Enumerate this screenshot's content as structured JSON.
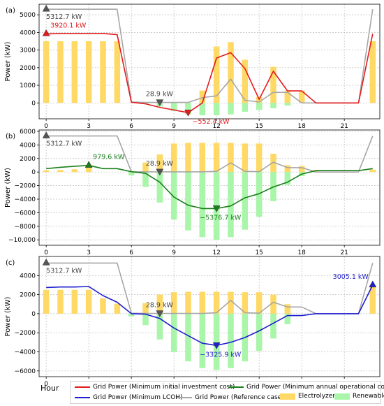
{
  "figure": {
    "x_axis_label": "Hour"
  },
  "legend": {
    "items": [
      {
        "label": "Grid Power (Minimum initial investment cost)",
        "color": "#e31a1c",
        "kind": "line"
      },
      {
        "label": "Grid Power (Minimum annual operational cost)",
        "color": "#1a7f1a",
        "kind": "line"
      },
      {
        "label": "Grid Power (Minimum LCOH)",
        "color": "#1f1fcf",
        "kind": "line"
      },
      {
        "label": "Grid Power (Reference case)",
        "color": "#a6a6a6",
        "kind": "line"
      },
      {
        "label": "Electrolyzer",
        "color": "#ffd966",
        "kind": "patch"
      },
      {
        "label": "Renewable",
        "color": "#a9f5a9",
        "kind": "patch"
      }
    ]
  },
  "chart_data": [
    {
      "type": "bar",
      "panel_label": "(a)",
      "ylabel": "Power (kW)",
      "xlim": [
        -0.5,
        23.5
      ],
      "ylim": [
        -900,
        5600
      ],
      "xticks": [
        0,
        3,
        6,
        9,
        12,
        15,
        18,
        21
      ],
      "yticks": [
        0,
        1000,
        2000,
        3000,
        4000,
        5000
      ],
      "ytick_labels": [
        "0",
        "1000",
        "2000",
        "3000",
        "4000",
        "5000"
      ],
      "grid": true,
      "x": [
        0,
        1,
        2,
        3,
        4,
        5,
        6,
        7,
        8,
        9,
        10,
        11,
        12,
        13,
        14,
        15,
        16,
        17,
        18,
        19,
        20,
        21,
        22,
        23
      ],
      "series": [
        {
          "name": "Electrolyzer",
          "kind": "bar",
          "color": "#ffd966",
          "values": [
            3500,
            3500,
            3500,
            3500,
            3500,
            3500,
            0,
            0,
            0,
            0,
            0,
            700,
            3200,
            3450,
            2450,
            350,
            2050,
            700,
            700,
            0,
            0,
            0,
            0,
            3500
          ]
        },
        {
          "name": "Renewable",
          "kind": "bar",
          "color": "#a9f5a9",
          "values": [
            0,
            0,
            0,
            0,
            0,
            0,
            0,
            -50,
            -200,
            -450,
            -650,
            -700,
            -700,
            -650,
            -500,
            -400,
            -300,
            -150,
            0,
            0,
            0,
            0,
            0,
            0
          ]
        },
        {
          "name": "Grid Power (Reference case)",
          "kind": "line",
          "color": "#a6a6a6",
          "values": [
            5312.7,
            5312.7,
            5312.7,
            5312.7,
            5312.7,
            5312.7,
            50,
            28.9,
            28.9,
            28.9,
            28.9,
            300,
            400,
            1350,
            150,
            50,
            600,
            600,
            0,
            0,
            0,
            0,
            0,
            5312.7
          ]
        },
        {
          "name": "Grid Power (Minimum initial investment cost)",
          "kind": "line",
          "color": "#e31a1c",
          "values": [
            3920.1,
            3930,
            3930,
            3940,
            3940,
            3870,
            40,
            -50,
            -250,
            -400,
            -552.4,
            0,
            2550,
            2850,
            1950,
            200,
            1800,
            680,
            680,
            0,
            0,
            0,
            0,
            3920.1
          ]
        }
      ],
      "annotations": [
        {
          "text": "5312.7  kW",
          "x": 0,
          "y": 5312.7,
          "color": "#444444",
          "marker": "up"
        },
        {
          "text": "3920.1  kW",
          "x": 0,
          "y": 3920.1,
          "color": "#e31a1c",
          "marker": "up"
        },
        {
          "text": "28.9  kW",
          "x": 8,
          "y": 28.9,
          "color": "#444444",
          "marker": "down"
        },
        {
          "text": "−552.4  kW",
          "x": 10,
          "y": -552.4,
          "color": "#e31a1c",
          "marker": "down"
        }
      ]
    },
    {
      "type": "bar",
      "panel_label": "(b)",
      "ylabel": "Power (kW)",
      "xlim": [
        -0.5,
        23.5
      ],
      "ylim": [
        -10800,
        6200
      ],
      "xticks": [
        0,
        3,
        6,
        9,
        12,
        15,
        18,
        21
      ],
      "yticks": [
        6000,
        4000,
        2000,
        0,
        -2000,
        -4000,
        -6000,
        -8000,
        -10000
      ],
      "ytick_labels": [
        "6000",
        "4000",
        "2000",
        "0",
        "−2000",
        "−4000",
        "−6000",
        "−8000",
        "−10,000"
      ],
      "grid": true,
      "x": [
        0,
        1,
        2,
        3,
        4,
        5,
        6,
        7,
        8,
        9,
        10,
        11,
        12,
        13,
        14,
        15,
        16,
        17,
        18,
        19,
        20,
        21,
        22,
        23
      ],
      "series": [
        {
          "name": "Electrolyzer",
          "kind": "bar",
          "color": "#ffd966",
          "values": [
            250,
            300,
            400,
            900,
            0,
            0,
            0,
            1400,
            2600,
            4200,
            4300,
            4300,
            4300,
            4300,
            4200,
            4200,
            2700,
            1000,
            900,
            300,
            0,
            0,
            0,
            350
          ]
        },
        {
          "name": "Renewable",
          "kind": "bar",
          "color": "#a9f5a9",
          "values": [
            0,
            0,
            0,
            0,
            0,
            0,
            -500,
            -2200,
            -4500,
            -7000,
            -8600,
            -9600,
            -10000,
            -9600,
            -8500,
            -6600,
            -4300,
            -1900,
            -600,
            0,
            0,
            0,
            0,
            0
          ]
        },
        {
          "name": "Grid Power (Reference case)",
          "kind": "line",
          "color": "#a6a6a6",
          "values": [
            5312.7,
            5312.7,
            5312.7,
            5312.7,
            5312.7,
            5312.7,
            50,
            28.9,
            28.9,
            28.9,
            28.9,
            28.9,
            100,
            1350,
            100,
            50,
            1450,
            650,
            650,
            0,
            0,
            0,
            0,
            5312.7
          ]
        },
        {
          "name": "Grid Power (Minimum annual operational cost)",
          "kind": "line",
          "color": "#1a7f1a",
          "values": [
            500,
            700,
            850,
            979.6,
            500,
            500,
            50,
            -200,
            -1500,
            -3700,
            -4900,
            -5376.7,
            -5376.7,
            -5000,
            -3800,
            -3200,
            -2200,
            -1500,
            -300,
            200,
            200,
            200,
            200,
            500
          ]
        }
      ],
      "annotations": [
        {
          "text": "5312.7  kW",
          "x": 0,
          "y": 5312.7,
          "color": "#444444",
          "marker": "up"
        },
        {
          "text": "979.6  kW",
          "x": 3,
          "y": 979.6,
          "color": "#1a7f1a",
          "marker": "up"
        },
        {
          "text": "28.9  kW",
          "x": 8,
          "y": 28.9,
          "color": "#444444",
          "marker": "down"
        },
        {
          "text": "−5376.7  kW",
          "x": 12,
          "y": -5376.7,
          "color": "#1a7f1a",
          "marker": "down"
        }
      ]
    },
    {
      "type": "bar",
      "panel_label": "(c)",
      "ylabel": "Power (kW)",
      "xlim": [
        -0.5,
        23.5
      ],
      "ylim": [
        -6600,
        6000
      ],
      "xticks": [
        0,
        3,
        6,
        9,
        12,
        15,
        18,
        21
      ],
      "yticks": [
        4000,
        2000,
        0,
        -2000,
        -4000,
        -6000
      ],
      "ytick_labels": [
        "4000",
        "2000",
        "0",
        "−2000",
        "−4000",
        "−6000"
      ],
      "grid": true,
      "x": [
        0,
        1,
        2,
        3,
        4,
        5,
        6,
        7,
        8,
        9,
        10,
        11,
        12,
        13,
        14,
        15,
        16,
        17,
        18,
        19,
        20,
        21,
        22,
        23
      ],
      "series": [
        {
          "name": "Electrolyzer",
          "kind": "bar",
          "color": "#ffd966",
          "values": [
            2500,
            2500,
            2500,
            2500,
            1600,
            1050,
            0,
            1100,
            2000,
            2250,
            2300,
            2300,
            2300,
            2300,
            2250,
            2250,
            2000,
            1000,
            0,
            0,
            0,
            0,
            0,
            3000
          ]
        },
        {
          "name": "Renewable",
          "kind": "bar",
          "color": "#a9f5a9",
          "values": [
            0,
            0,
            0,
            0,
            0,
            0,
            -300,
            -1200,
            -2700,
            -4000,
            -5000,
            -5700,
            -5900,
            -5700,
            -5000,
            -3900,
            -2600,
            -1100,
            0,
            0,
            0,
            0,
            0,
            0
          ]
        },
        {
          "name": "Grid Power (Reference case)",
          "kind": "line",
          "color": "#a6a6a6",
          "values": [
            5312.7,
            5312.7,
            5312.7,
            5312.7,
            5312.7,
            5312.7,
            50,
            28.9,
            28.9,
            28.9,
            28.9,
            28.9,
            100,
            1400,
            100,
            50,
            1200,
            700,
            700,
            0,
            0,
            0,
            0,
            5312.7
          ]
        },
        {
          "name": "Grid Power (Minimum LCOH)",
          "kind": "line",
          "color": "#1f1fcf",
          "values": [
            2750,
            2800,
            2800,
            2850,
            1900,
            1200,
            0,
            -50,
            -500,
            -1500,
            -2300,
            -3100,
            -3325.9,
            -3000,
            -2500,
            -1800,
            -1000,
            -200,
            -200,
            0,
            0,
            0,
            0,
            3005.1
          ]
        }
      ],
      "annotations": [
        {
          "text": "5312.7  kW",
          "x": 0,
          "y": 5312.7,
          "color": "#444444",
          "marker": "up"
        },
        {
          "text": "3005.1  kW",
          "x": 23,
          "y": 3005.1,
          "color": "#1f1fcf",
          "marker": "up"
        },
        {
          "text": "28.9  kW",
          "x": 8,
          "y": 28.9,
          "color": "#444444",
          "marker": "down"
        },
        {
          "text": "−3325.9  kW",
          "x": 12,
          "y": -3325.9,
          "color": "#1f1fcf",
          "marker": "down"
        }
      ]
    }
  ]
}
